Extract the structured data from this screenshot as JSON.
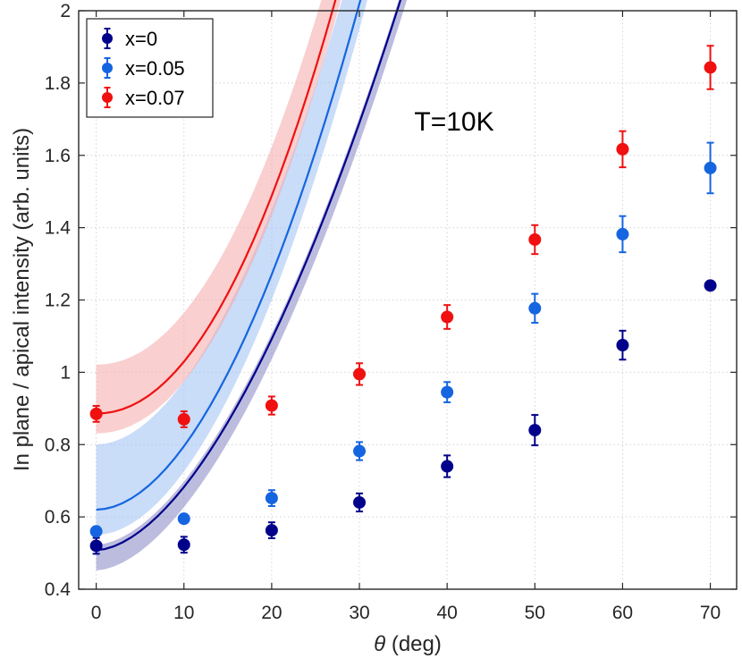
{
  "chart_data": {
    "type": "scatter",
    "title": "",
    "annotation": "T=10K",
    "xlabel": {
      "symbol": "θ",
      "text": " (deg)"
    },
    "ylabel": "In plane / apical intensity (arb. units)",
    "xlim": [
      -2,
      73
    ],
    "ylim": [
      0.4,
      2.0
    ],
    "grid": true,
    "grid_style": "dotted",
    "legend_position": "top-left",
    "x_ticks": [
      0,
      10,
      20,
      30,
      40,
      50,
      60,
      70
    ],
    "x_tick_labels": [
      "0",
      "10",
      "20",
      "30",
      "40",
      "50",
      "60",
      "70"
    ],
    "y_ticks": [
      0.4,
      0.6,
      0.8,
      1.0,
      1.2,
      1.4,
      1.6,
      1.8,
      2.0
    ],
    "y_tick_labels": [
      "0.4",
      "0.6",
      "0.8",
      "1",
      "1.2",
      "1.4",
      "1.6",
      "1.8",
      "2"
    ],
    "x": [
      0,
      10,
      20,
      30,
      40,
      50,
      60,
      70
    ],
    "series": [
      {
        "name": "x=0",
        "color": "#00008B",
        "band_color": "#8585C2",
        "values": [
          0.52,
          0.523,
          0.563,
          0.64,
          0.74,
          0.84,
          1.075,
          1.24
        ],
        "errors": [
          0.022,
          0.022,
          0.022,
          0.025,
          0.03,
          0.042,
          0.04,
          0.0
        ],
        "fit": {
          "a": 0.508,
          "b": 0.00318,
          "p": 1.74
        },
        "band_upper_offset": 0.015,
        "band_lower_offset": 0.056
      },
      {
        "name": "x=0.05",
        "color": "#1565E0",
        "band_color": "#9CC0F2",
        "values": [
          0.56,
          0.595,
          0.652,
          0.782,
          0.945,
          1.177,
          1.382,
          1.565
        ],
        "errors": [
          0.0,
          0.0,
          0.022,
          0.025,
          0.028,
          0.04,
          0.05,
          0.07
        ],
        "fit": {
          "a": 0.62,
          "b": 0.00226,
          "p": 1.89
        },
        "band_upper_offset": 0.18,
        "band_lower_offset": 0.07
      },
      {
        "name": "x=0.07",
        "color": "#F01010",
        "band_color": "#F5A8A8",
        "values": [
          0.885,
          0.87,
          0.908,
          0.995,
          1.153,
          1.367,
          1.617,
          1.843
        ],
        "errors": [
          0.022,
          0.022,
          0.025,
          0.03,
          0.033,
          0.04,
          0.05,
          0.06
        ],
        "fit": {
          "a": 0.886,
          "b": 0.00122,
          "p": 2.07
        },
        "band_upper_offset": 0.135,
        "band_lower_offset": 0.055
      }
    ]
  }
}
